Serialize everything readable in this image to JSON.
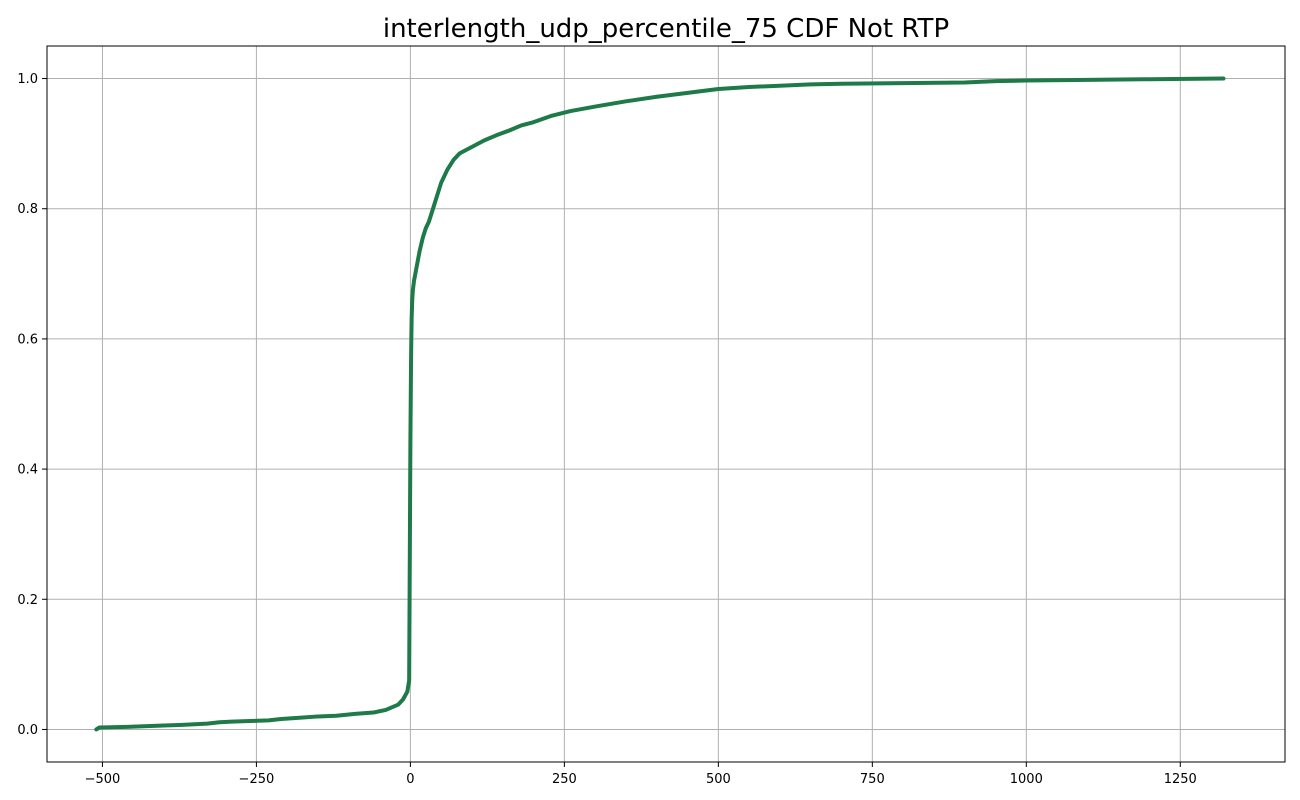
{
  "chart_data": {
    "type": "line",
    "title": "interlength_udp_percentile_75 CDF Not RTP",
    "xlabel": "",
    "ylabel": "",
    "xlim": [
      -590,
      1420
    ],
    "ylim": [
      -0.05,
      1.05
    ],
    "xticks": [
      -500,
      -250,
      0,
      250,
      500,
      750,
      1000,
      1250
    ],
    "xtick_labels": [
      "−500",
      "−250",
      "0",
      "250",
      "500",
      "750",
      "1000",
      "1250"
    ],
    "yticks": [
      0.0,
      0.2,
      0.4,
      0.6,
      0.8,
      1.0
    ],
    "ytick_labels": [
      "0.0",
      "0.2",
      "0.4",
      "0.6",
      "0.8",
      "1.0"
    ],
    "grid": true,
    "series": [
      {
        "color": "#1f7a4a",
        "x": [
          -510,
          -505,
          -460,
          -400,
          -370,
          -330,
          -310,
          -290,
          -260,
          -230,
          -210,
          -180,
          -150,
          -120,
          -90,
          -60,
          -40,
          -30,
          -20,
          -12,
          -5,
          -2,
          0,
          0.5,
          1,
          1.5,
          2,
          2.5,
          3,
          4,
          6,
          10,
          15,
          20,
          25,
          30,
          35,
          40,
          45,
          50,
          55,
          60,
          70,
          80,
          90,
          100,
          120,
          140,
          160,
          180,
          200,
          230,
          260,
          300,
          350,
          400,
          450,
          500,
          550,
          600,
          650,
          700,
          800,
          900,
          950,
          1000,
          1100,
          1200,
          1320
        ],
        "y": [
          0.0,
          0.003,
          0.004,
          0.006,
          0.007,
          0.009,
          0.011,
          0.012,
          0.013,
          0.014,
          0.016,
          0.018,
          0.02,
          0.021,
          0.024,
          0.026,
          0.03,
          0.034,
          0.038,
          0.046,
          0.058,
          0.075,
          0.44,
          0.5,
          0.56,
          0.6,
          0.63,
          0.645,
          0.66,
          0.675,
          0.69,
          0.71,
          0.735,
          0.755,
          0.77,
          0.78,
          0.795,
          0.81,
          0.825,
          0.84,
          0.85,
          0.86,
          0.875,
          0.885,
          0.89,
          0.895,
          0.905,
          0.913,
          0.92,
          0.928,
          0.933,
          0.943,
          0.95,
          0.957,
          0.965,
          0.972,
          0.978,
          0.984,
          0.987,
          0.989,
          0.991,
          0.992,
          0.993,
          0.994,
          0.996,
          0.997,
          0.998,
          0.999,
          1.0
        ]
      }
    ]
  }
}
